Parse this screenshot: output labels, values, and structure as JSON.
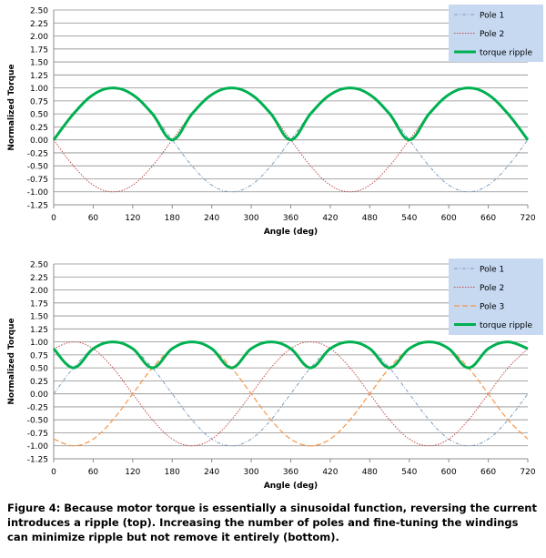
{
  "caption": "Figure 4: Because motor torque is essentially a sinusoidal function, reversing the current introduces a ripple (top). Increasing the number of poles and fine-tuning the windings can minimize ripple but not remove it entirely (bottom).",
  "chart_data": [
    {
      "type": "line",
      "title": "",
      "xlabel": "Angle (deg)",
      "ylabel": "Normalized Torque",
      "xlim": [
        0,
        720
      ],
      "ylim": [
        -1.25,
        2.5
      ],
      "x_ticks": [
        0,
        60,
        120,
        180,
        240,
        300,
        360,
        420,
        480,
        540,
        600,
        660,
        720
      ],
      "y_ticks": [
        2.5,
        2.25,
        2.0,
        1.75,
        1.5,
        1.25,
        1.0,
        0.75,
        0.5,
        0.25,
        0.0,
        -0.25,
        -0.5,
        -0.75,
        -1.0,
        -1.25
      ],
      "y_tick_labels": [
        "2.50",
        "2.25",
        "2.00",
        "1.75",
        "1.50",
        "1.25",
        "1.00",
        "0.75",
        "0.50",
        "0.25",
        "0.00",
        "-0.25",
        "-0.50",
        "-0.75",
        "-1.00",
        "-1.25"
      ],
      "grid": "horizontal",
      "legend_position": "top-right",
      "x": [
        0,
        30,
        60,
        90,
        120,
        150,
        180,
        210,
        240,
        270,
        300,
        330,
        360,
        390,
        420,
        450,
        480,
        510,
        540,
        570,
        600,
        630,
        660,
        690,
        720
      ],
      "series": [
        {
          "name": "Pole 1",
          "color": "#7f9fbf",
          "style": "dash-dot",
          "values": [
            0,
            0.5,
            0.87,
            1,
            0.87,
            0.5,
            0,
            -0.5,
            -0.87,
            -1,
            -0.87,
            -0.5,
            0,
            0.5,
            0.87,
            1,
            0.87,
            0.5,
            0,
            -0.5,
            -0.87,
            -1,
            -0.87,
            -0.5,
            0
          ]
        },
        {
          "name": "Pole 2",
          "color": "#c0504d",
          "style": "dotted",
          "values": [
            0,
            -0.5,
            -0.87,
            -1,
            -0.87,
            -0.5,
            0,
            0.5,
            0.87,
            1,
            0.87,
            0.5,
            0,
            -0.5,
            -0.87,
            -1,
            -0.87,
            -0.5,
            0,
            0.5,
            0.87,
            1,
            0.87,
            0.5,
            0
          ]
        },
        {
          "name": "torque ripple",
          "color": "#00b050",
          "style": "solid-thick",
          "values": [
            0,
            0.5,
            0.87,
            1,
            0.87,
            0.5,
            0,
            0.5,
            0.87,
            1,
            0.87,
            0.5,
            0,
            0.5,
            0.87,
            1,
            0.87,
            0.5,
            0,
            0.5,
            0.87,
            1,
            0.87,
            0.5,
            0
          ]
        }
      ]
    },
    {
      "type": "line",
      "title": "",
      "xlabel": "Angle (deg)",
      "ylabel": "Normalized Torque",
      "xlim": [
        0,
        720
      ],
      "ylim": [
        -1.25,
        2.5
      ],
      "x_ticks": [
        0,
        60,
        120,
        180,
        240,
        300,
        360,
        420,
        480,
        540,
        600,
        660,
        720
      ],
      "y_ticks": [
        2.5,
        2.25,
        2.0,
        1.75,
        1.5,
        1.25,
        1.0,
        0.75,
        0.5,
        0.25,
        0.0,
        -0.25,
        -0.5,
        -0.75,
        -1.0,
        -1.25
      ],
      "y_tick_labels": [
        "2.50",
        "2.25",
        "2.00",
        "1.75",
        "1.50",
        "1.25",
        "1.00",
        "0.75",
        "0.50",
        "0.25",
        "0.00",
        "-0.25",
        "-0.50",
        "-0.75",
        "-1.00",
        "-1.25"
      ],
      "grid": "horizontal",
      "legend_position": "top-right",
      "x": [
        0,
        30,
        60,
        90,
        120,
        150,
        180,
        210,
        240,
        270,
        300,
        330,
        360,
        390,
        420,
        450,
        480,
        510,
        540,
        570,
        600,
        630,
        660,
        690,
        720
      ],
      "series": [
        {
          "name": "Pole 1",
          "color": "#7f9fbf",
          "style": "dash-dot",
          "values": [
            0,
            0.5,
            0.87,
            1,
            0.87,
            0.5,
            0,
            -0.5,
            -0.87,
            -1,
            -0.87,
            -0.5,
            0,
            0.5,
            0.87,
            1,
            0.87,
            0.5,
            0,
            -0.5,
            -0.87,
            -1,
            -0.87,
            -0.5,
            0
          ]
        },
        {
          "name": "Pole 2",
          "color": "#c0504d",
          "style": "dotted",
          "values": [
            0.87,
            1,
            0.87,
            0.5,
            0,
            -0.5,
            -0.87,
            -1,
            -0.87,
            -0.5,
            0,
            0.5,
            0.87,
            1,
            0.87,
            0.5,
            0,
            -0.5,
            -0.87,
            -1,
            -0.87,
            -0.5,
            0,
            0.5,
            0.87
          ]
        },
        {
          "name": "Pole 3",
          "color": "#f79646",
          "style": "dashed",
          "values": [
            -0.87,
            -1,
            -0.87,
            -0.5,
            0,
            0.5,
            0.87,
            1,
            0.87,
            0.5,
            0,
            -0.5,
            -0.87,
            -1,
            -0.87,
            -0.5,
            0,
            0.5,
            0.87,
            1,
            0.87,
            0.5,
            0,
            -0.5,
            -0.87
          ]
        },
        {
          "name": "torque ripple",
          "color": "#00b050",
          "style": "solid-thick",
          "values": [
            0.87,
            0.5,
            0.87,
            1,
            0.87,
            0.5,
            0.87,
            1,
            0.87,
            0.5,
            0.87,
            1,
            0.87,
            0.5,
            0.87,
            1,
            0.87,
            0.5,
            0.87,
            1,
            0.87,
            0.5,
            0.87,
            1,
            0.87
          ]
        }
      ]
    }
  ]
}
